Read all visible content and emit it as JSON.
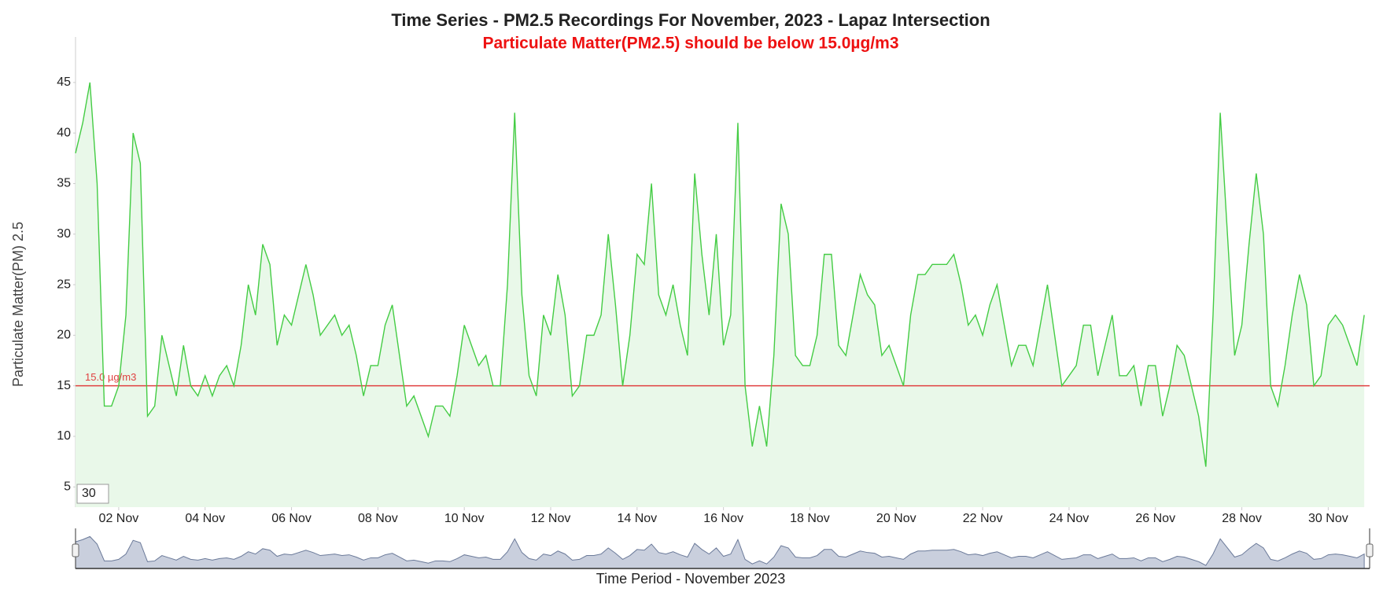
{
  "chart_data": {
    "type": "line",
    "title": "Time Series - PM2.5 Recordings For November, 2023 - Lapaz Intersection",
    "subtitle": "Particulate Matter(PM2.5) should be below 15.0µg/m3",
    "y_label": "Particulate Matter(PM) 2.5",
    "x_label": "Time Period - November 2023",
    "range_selector_value": "30",
    "threshold": {
      "value": 15,
      "label": "15.0 µg/m3",
      "color": "#e04040"
    },
    "color": "#44cc44",
    "fill": "#e9f8e9",
    "navigator": true,
    "x": [
      "2023-11-01 00:00",
      "2023-11-01 04:00",
      "2023-11-01 08:00",
      "2023-11-01 12:00",
      "2023-11-01 16:00",
      "2023-11-01 20:00",
      "2023-11-02 00:00",
      "2023-11-02 04:00",
      "2023-11-02 08:00",
      "2023-11-02 12:00",
      "2023-11-02 16:00",
      "2023-11-02 20:00",
      "2023-11-03 00:00",
      "2023-11-03 04:00",
      "2023-11-03 08:00",
      "2023-11-03 12:00",
      "2023-11-03 16:00",
      "2023-11-03 20:00",
      "2023-11-04 00:00",
      "2023-11-04 04:00",
      "2023-11-04 08:00",
      "2023-11-04 12:00",
      "2023-11-04 16:00",
      "2023-11-04 20:00",
      "2023-11-05 00:00",
      "2023-11-05 04:00",
      "2023-11-05 08:00",
      "2023-11-05 12:00",
      "2023-11-05 16:00",
      "2023-11-05 20:00",
      "2023-11-06 00:00",
      "2023-11-06 04:00",
      "2023-11-06 08:00",
      "2023-11-06 12:00",
      "2023-11-06 16:00",
      "2023-11-06 20:00",
      "2023-11-07 00:00",
      "2023-11-07 04:00",
      "2023-11-07 08:00",
      "2023-11-07 12:00",
      "2023-11-07 16:00",
      "2023-11-07 20:00",
      "2023-11-08 00:00",
      "2023-11-08 04:00",
      "2023-11-08 08:00",
      "2023-11-08 12:00",
      "2023-11-08 16:00",
      "2023-11-08 20:00",
      "2023-11-09 00:00",
      "2023-11-09 04:00",
      "2023-11-09 08:00",
      "2023-11-09 12:00",
      "2023-11-09 16:00",
      "2023-11-09 20:00",
      "2023-11-10 00:00",
      "2023-11-10 04:00",
      "2023-11-10 08:00",
      "2023-11-10 12:00",
      "2023-11-10 16:00",
      "2023-11-10 20:00",
      "2023-11-11 00:00",
      "2023-11-11 04:00",
      "2023-11-11 08:00",
      "2023-11-11 12:00",
      "2023-11-11 16:00",
      "2023-11-11 20:00",
      "2023-11-12 00:00",
      "2023-11-12 04:00",
      "2023-11-12 08:00",
      "2023-11-12 12:00",
      "2023-11-12 16:00",
      "2023-11-12 20:00",
      "2023-11-13 00:00",
      "2023-11-13 04:00",
      "2023-11-13 08:00",
      "2023-11-13 12:00",
      "2023-11-13 16:00",
      "2023-11-13 20:00",
      "2023-11-14 00:00",
      "2023-11-14 04:00",
      "2023-11-14 08:00",
      "2023-11-14 12:00",
      "2023-11-14 16:00",
      "2023-11-14 20:00",
      "2023-11-15 00:00",
      "2023-11-15 04:00",
      "2023-11-15 08:00",
      "2023-11-15 12:00",
      "2023-11-15 16:00",
      "2023-11-15 20:00",
      "2023-11-16 00:00",
      "2023-11-16 04:00",
      "2023-11-16 08:00",
      "2023-11-16 12:00",
      "2023-11-16 16:00",
      "2023-11-16 20:00",
      "2023-11-17 00:00",
      "2023-11-17 04:00",
      "2023-11-17 08:00",
      "2023-11-17 12:00",
      "2023-11-17 16:00",
      "2023-11-17 20:00",
      "2023-11-18 00:00",
      "2023-11-18 04:00",
      "2023-11-18 08:00",
      "2023-11-18 12:00",
      "2023-11-18 16:00",
      "2023-11-18 20:00",
      "2023-11-19 00:00",
      "2023-11-19 04:00",
      "2023-11-19 08:00",
      "2023-11-19 12:00",
      "2023-11-19 16:00",
      "2023-11-19 20:00",
      "2023-11-20 00:00",
      "2023-11-20 04:00",
      "2023-11-20 08:00",
      "2023-11-20 12:00",
      "2023-11-20 16:00",
      "2023-11-20 20:00",
      "2023-11-21 00:00",
      "2023-11-21 04:00",
      "2023-11-21 08:00",
      "2023-11-21 12:00",
      "2023-11-21 16:00",
      "2023-11-21 20:00",
      "2023-11-22 00:00",
      "2023-11-22 04:00",
      "2023-11-22 08:00",
      "2023-11-22 12:00",
      "2023-11-22 16:00",
      "2023-11-22 20:00",
      "2023-11-23 00:00",
      "2023-11-23 04:00",
      "2023-11-23 08:00",
      "2023-11-23 12:00",
      "2023-11-23 16:00",
      "2023-11-23 20:00",
      "2023-11-24 00:00",
      "2023-11-24 04:00",
      "2023-11-24 08:00",
      "2023-11-24 12:00",
      "2023-11-24 16:00",
      "2023-11-24 20:00",
      "2023-11-25 00:00",
      "2023-11-25 04:00",
      "2023-11-25 08:00",
      "2023-11-25 12:00",
      "2023-11-25 16:00",
      "2023-11-25 20:00",
      "2023-11-26 00:00",
      "2023-11-26 04:00",
      "2023-11-26 08:00",
      "2023-11-26 12:00",
      "2023-11-26 16:00",
      "2023-11-26 20:00",
      "2023-11-27 00:00",
      "2023-11-27 04:00",
      "2023-11-27 08:00",
      "2023-11-27 12:00",
      "2023-11-27 16:00",
      "2023-11-27 20:00",
      "2023-11-28 00:00",
      "2023-11-28 04:00",
      "2023-11-28 08:00",
      "2023-11-28 12:00",
      "2023-11-28 16:00",
      "2023-11-28 20:00",
      "2023-11-29 00:00",
      "2023-11-29 04:00",
      "2023-11-29 08:00",
      "2023-11-29 12:00",
      "2023-11-29 16:00",
      "2023-11-29 20:00",
      "2023-11-30 00:00",
      "2023-11-30 04:00",
      "2023-11-30 08:00",
      "2023-11-30 12:00",
      "2023-11-30 16:00",
      "2023-11-30 20:00"
    ],
    "values": [
      38,
      41,
      45,
      35,
      13,
      13,
      15,
      22,
      40,
      37,
      12,
      13,
      20,
      17,
      14,
      19,
      15,
      14,
      16,
      14,
      16,
      17,
      15,
      19,
      25,
      22,
      29,
      27,
      19,
      22,
      21,
      24,
      27,
      24,
      20,
      21,
      22,
      20,
      21,
      18,
      14,
      17,
      17,
      21,
      23,
      18,
      13,
      14,
      12,
      10,
      13,
      13,
      12,
      16,
      21,
      19,
      17,
      18,
      15,
      15,
      25,
      42,
      24,
      16,
      14,
      22,
      20,
      26,
      22,
      14,
      15,
      20,
      20,
      22,
      30,
      23,
      15,
      20,
      28,
      27,
      35,
      24,
      22,
      25,
      21,
      18,
      36,
      28,
      22,
      30,
      19,
      22,
      41,
      15,
      9,
      13,
      9,
      18,
      33,
      30,
      18,
      17,
      17,
      20,
      28,
      28,
      19,
      18,
      22,
      26,
      24,
      23,
      18,
      19,
      17,
      15,
      22,
      26,
      26,
      27,
      27,
      27,
      28,
      25,
      21,
      22,
      20,
      23,
      25,
      21,
      17,
      19,
      19,
      17,
      21,
      25,
      20,
      15,
      16,
      17,
      21,
      21,
      16,
      19,
      22,
      16,
      16,
      17,
      13,
      17,
      17,
      12,
      15,
      19,
      18,
      15,
      12,
      7,
      22,
      42,
      30,
      18,
      21,
      29,
      36,
      30,
      15,
      13,
      17,
      22,
      26,
      23,
      15,
      16,
      21,
      22,
      21,
      19,
      17,
      22
    ],
    "xlim": [
      "2023-11-01 00:00",
      "2023-11-30 23:00"
    ],
    "xticks": [
      {
        "value": "2023-11-02 00:00",
        "label": "02 Nov"
      },
      {
        "value": "2023-11-04 00:00",
        "label": "04 Nov"
      },
      {
        "value": "2023-11-06 00:00",
        "label": "06 Nov"
      },
      {
        "value": "2023-11-08 00:00",
        "label": "08 Nov"
      },
      {
        "value": "2023-11-10 00:00",
        "label": "10 Nov"
      },
      {
        "value": "2023-11-12 00:00",
        "label": "12 Nov"
      },
      {
        "value": "2023-11-14 00:00",
        "label": "14 Nov"
      },
      {
        "value": "2023-11-16 00:00",
        "label": "16 Nov"
      },
      {
        "value": "2023-11-18 00:00",
        "label": "18 Nov"
      },
      {
        "value": "2023-11-20 00:00",
        "label": "20 Nov"
      },
      {
        "value": "2023-11-22 00:00",
        "label": "22 Nov"
      },
      {
        "value": "2023-11-24 00:00",
        "label": "24 Nov"
      },
      {
        "value": "2023-11-26 00:00",
        "label": "26 Nov"
      },
      {
        "value": "2023-11-28 00:00",
        "label": "28 Nov"
      },
      {
        "value": "2023-11-30 00:00",
        "label": "30 Nov"
      }
    ],
    "ylim": [
      3,
      49.5
    ],
    "yticks": [
      5,
      10,
      15,
      20,
      25,
      30,
      35,
      40,
      45
    ],
    "grid": false
  }
}
